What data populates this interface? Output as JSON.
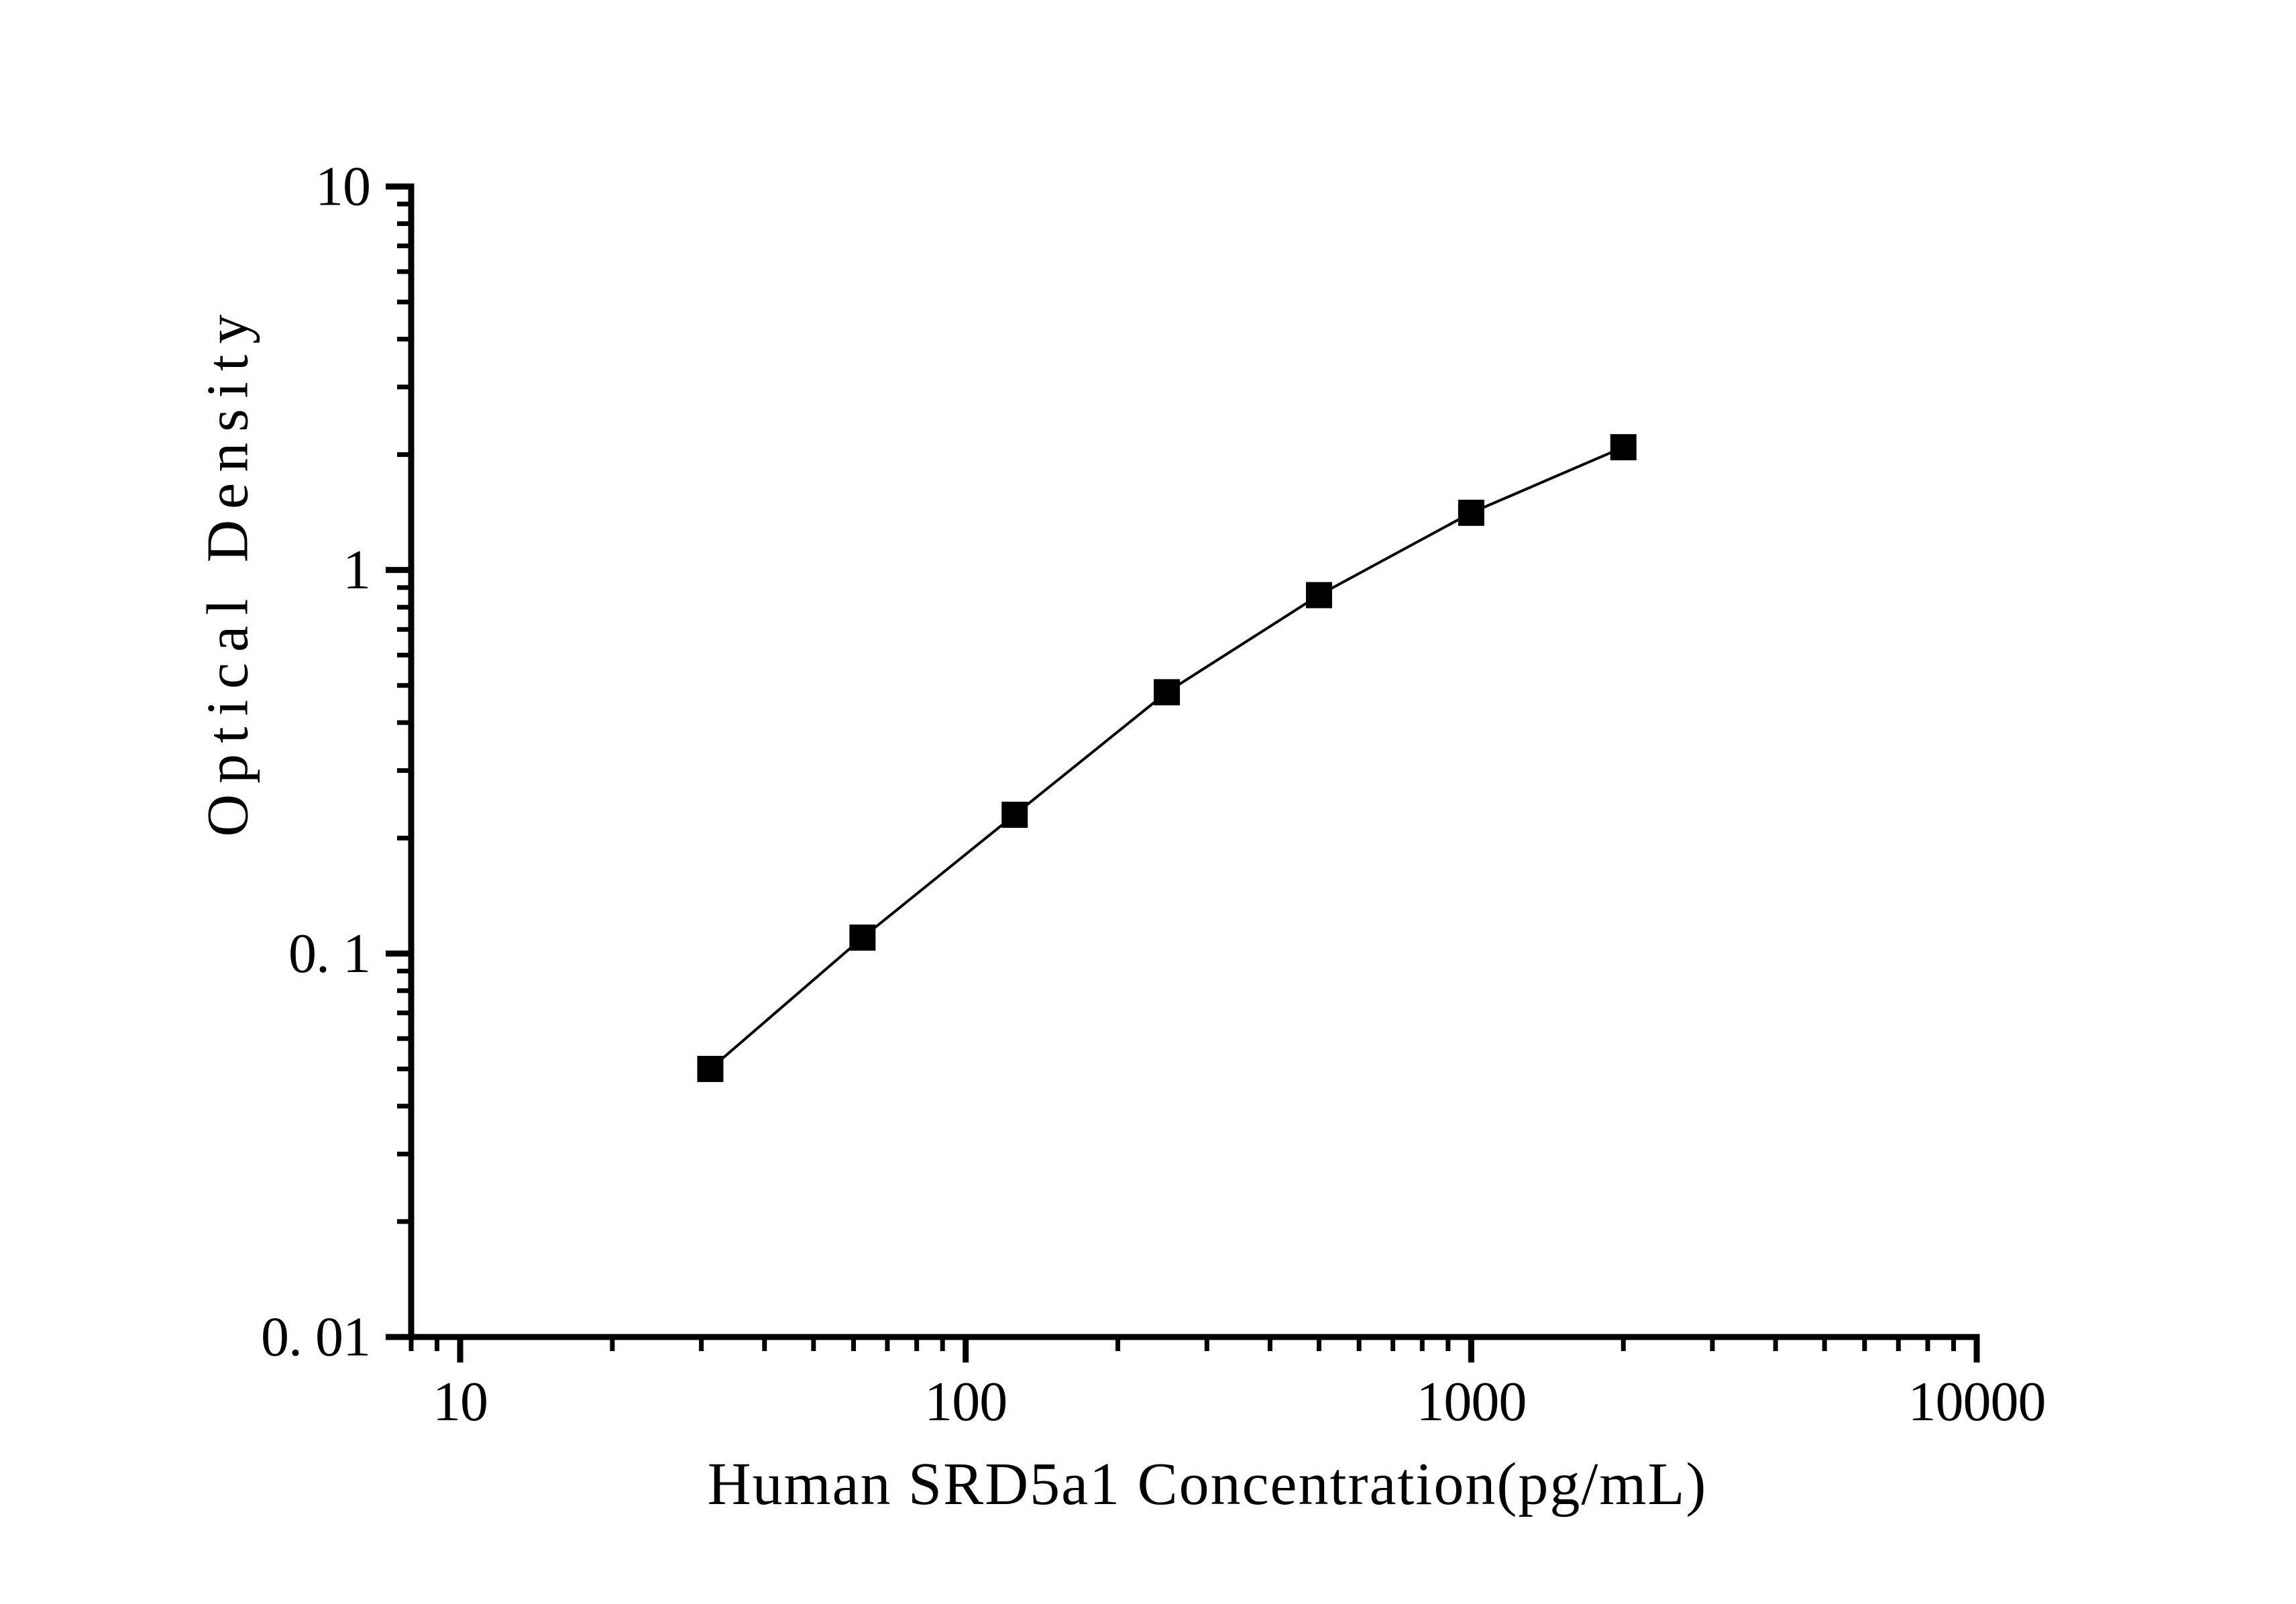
{
  "page": {
    "background": "#ffffff",
    "text_color": "#000000"
  },
  "chart_data": {
    "type": "line",
    "title": "",
    "xlabel": "Human SRD5a1 Concentration(pg/mL)",
    "ylabel": "Optical Density",
    "xscale": "log",
    "yscale": "log",
    "xlim": [
      8,
      10000
    ],
    "ylim": [
      0.01,
      10
    ],
    "grid": false,
    "legend": "none",
    "line_color": "#000000",
    "marker_color": "#000000",
    "marker_shape": "filled-square",
    "series": [
      {
        "x": [
          31.25,
          62.5,
          125,
          250,
          500,
          1000,
          2000
        ],
        "y": [
          0.05,
          0.11,
          0.23,
          0.48,
          0.86,
          1.41,
          2.09
        ]
      }
    ],
    "x_major_ticks": [
      {
        "value": 10,
        "label": "10"
      },
      {
        "value": 100,
        "label": "100"
      },
      {
        "value": 1000,
        "label": "1000"
      },
      {
        "value": 10000,
        "label": "10000"
      }
    ],
    "y_major_ticks": [
      {
        "value": 10,
        "label": "10"
      },
      {
        "value": 1,
        "label": "1"
      },
      {
        "value": 0.1,
        "label": "0. 1"
      },
      {
        "value": 0.01,
        "label": "0. 01"
      }
    ],
    "minor_tick_style": "log multiples 2-9, outward"
  }
}
